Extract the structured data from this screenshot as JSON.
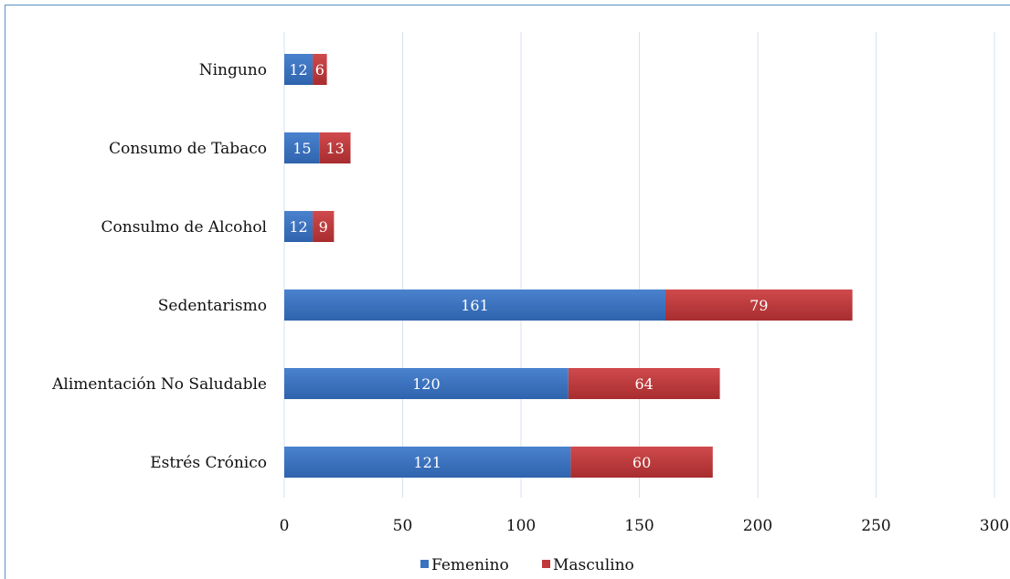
{
  "chart_data": {
    "type": "bar",
    "orientation": "horizontal",
    "stacked": true,
    "categories": [
      "Ninguno",
      "Consumo de Tabaco",
      "Consulmo de Alcohol",
      "Sedentarismo",
      "Alimentación No Saludable",
      "Estrés Crónico"
    ],
    "series": [
      {
        "name": "Femenino",
        "color": "#3a72c0",
        "values": [
          12,
          15,
          12,
          161,
          120,
          121
        ]
      },
      {
        "name": "Masculino",
        "color": "#c0393b",
        "values": [
          6,
          13,
          9,
          79,
          64,
          60
        ]
      }
    ],
    "xlim": [
      0,
      300
    ],
    "xticks": [
      "0",
      "50",
      "100",
      "150",
      "200",
      "250",
      "300"
    ],
    "grid": true,
    "legend_position": "bottom"
  }
}
